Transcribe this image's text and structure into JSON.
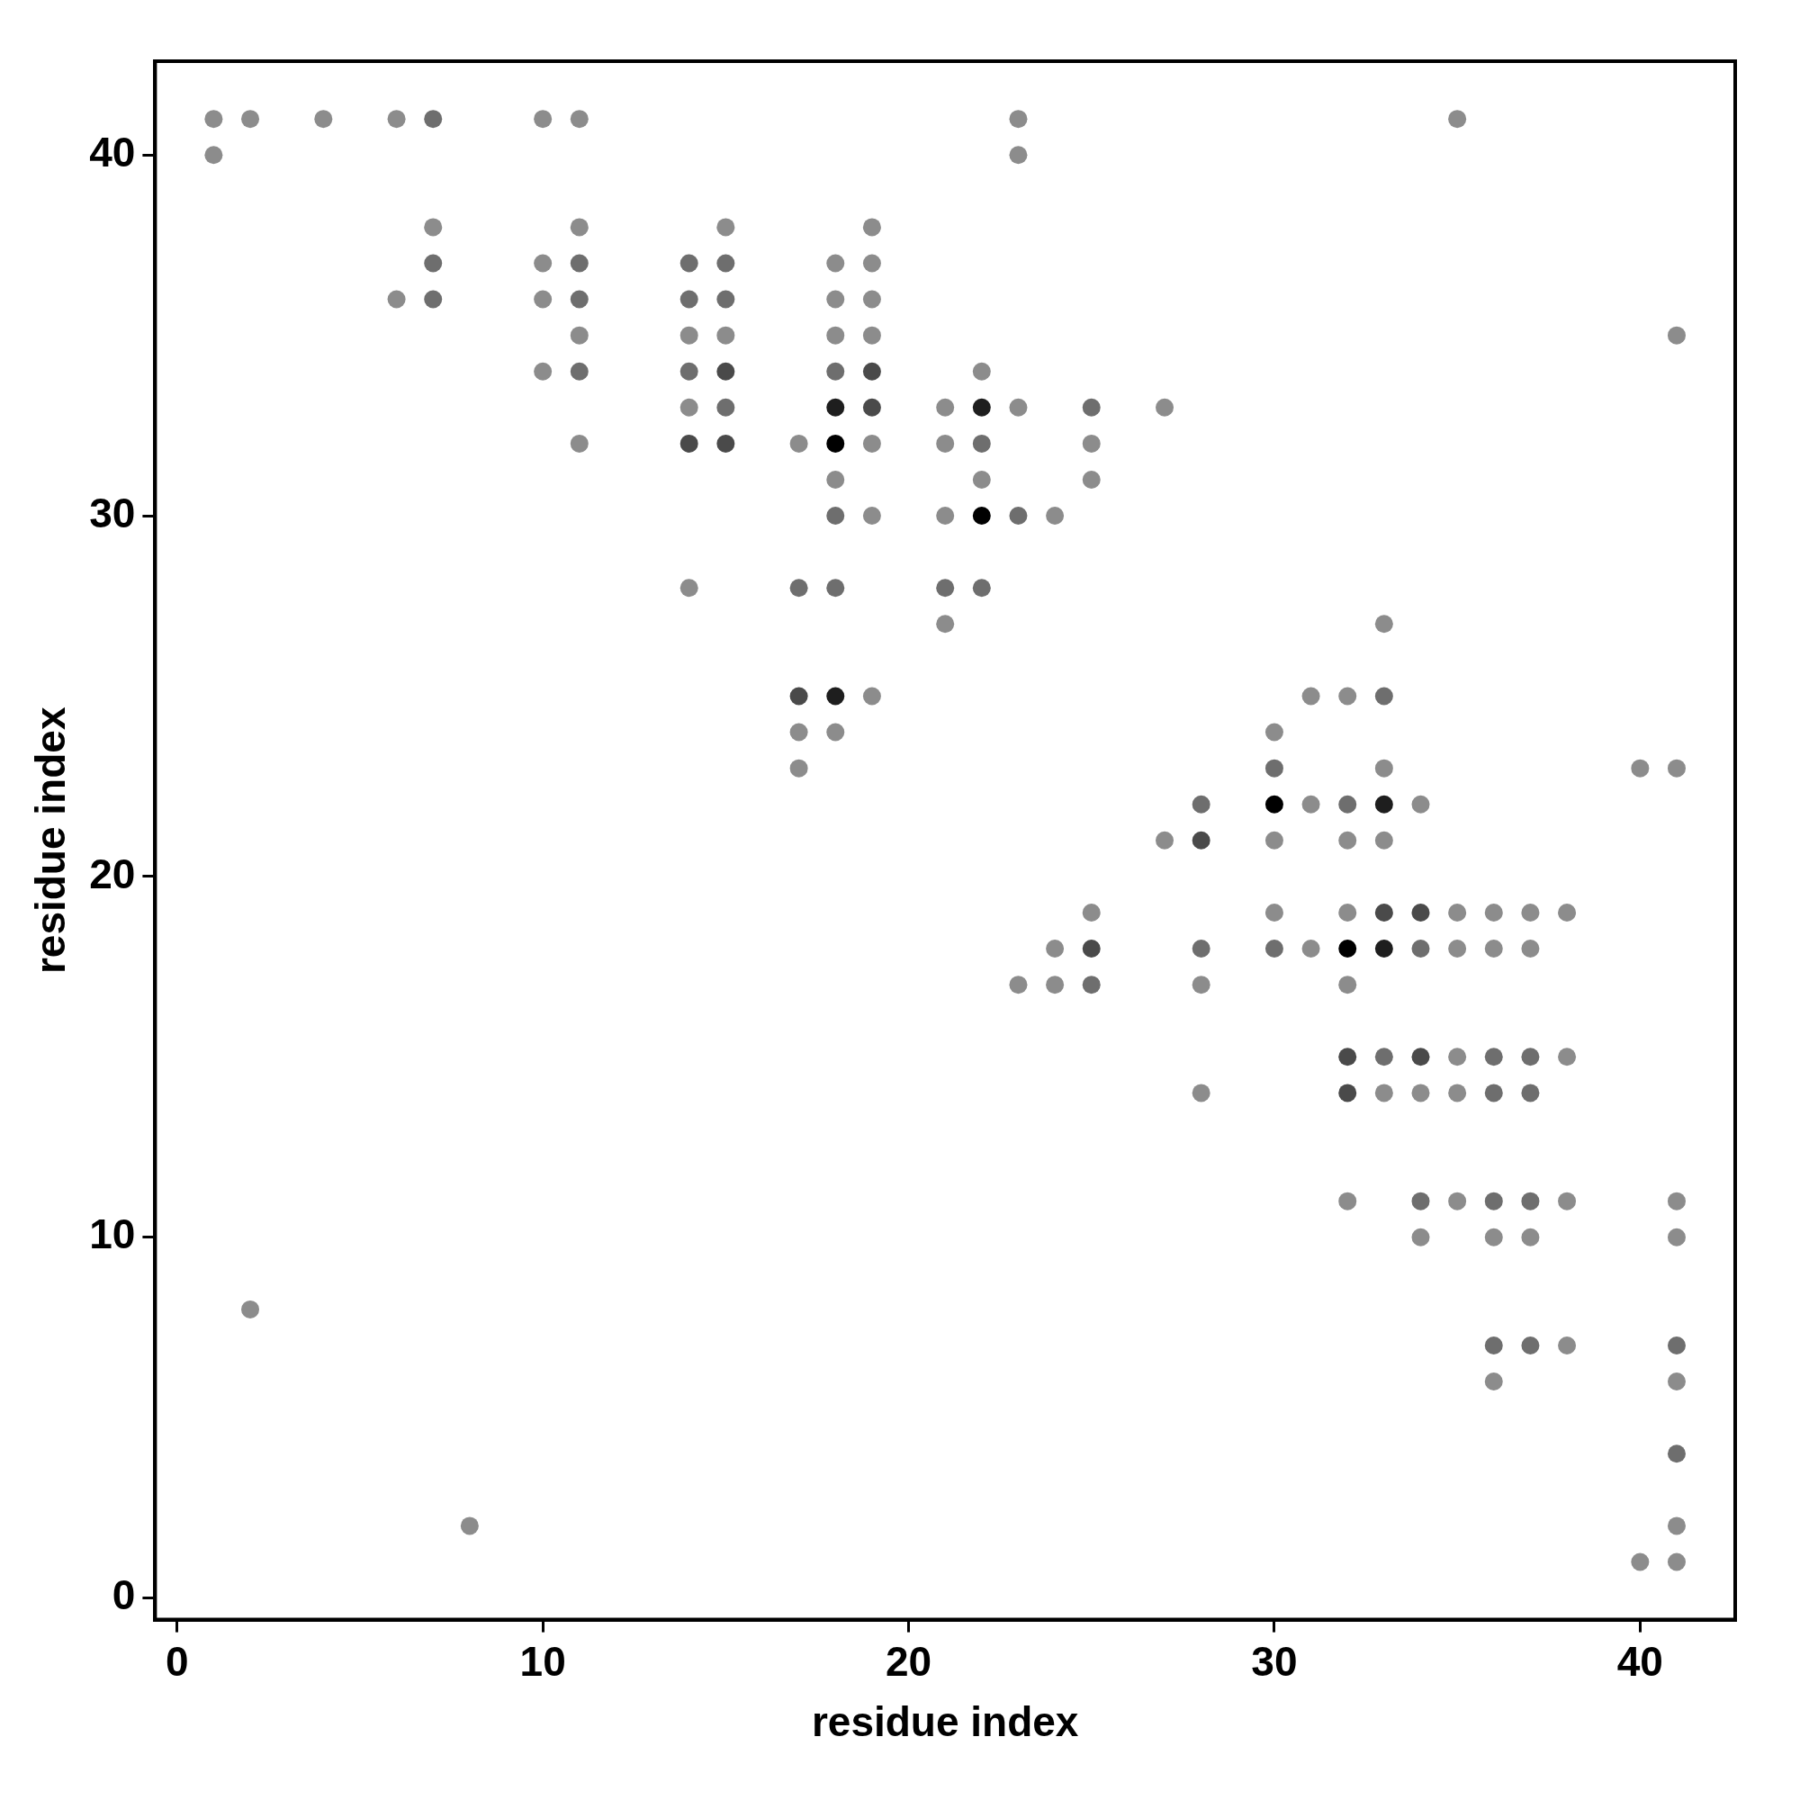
{
  "chart_data": {
    "type": "scatter",
    "xlabel": "residue index",
    "ylabel": "residue index",
    "marker": "circle",
    "grid": false,
    "legend": false,
    "xlim": [
      -0.6,
      42.6
    ],
    "ylim": [
      -0.6,
      42.6
    ],
    "xticks": [
      0,
      10,
      20,
      30,
      40
    ],
    "yticks": [
      0,
      10,
      20,
      30,
      40
    ],
    "x": [
      1,
      1,
      2,
      2,
      4,
      6,
      6,
      7,
      7,
      7,
      7,
      8,
      10,
      10,
      10,
      10,
      11,
      11,
      11,
      11,
      11,
      11,
      11,
      14,
      14,
      14,
      14,
      14,
      14,
      14,
      15,
      15,
      15,
      15,
      15,
      15,
      15,
      17,
      17,
      17,
      17,
      17,
      18,
      18,
      18,
      18,
      18,
      18,
      18,
      18,
      18,
      18,
      18,
      19,
      19,
      19,
      19,
      19,
      19,
      19,
      19,
      19,
      21,
      21,
      21,
      21,
      21,
      22,
      22,
      22,
      22,
      22,
      22,
      23,
      23,
      23,
      23,
      23,
      24,
      24,
      24,
      25,
      25,
      25,
      25,
      25,
      25,
      27,
      27,
      28,
      28,
      28,
      28,
      28,
      30,
      30,
      30,
      30,
      30,
      30,
      31,
      31,
      31,
      32,
      32,
      32,
      32,
      32,
      32,
      32,
      32,
      32,
      33,
      33,
      33,
      33,
      33,
      33,
      33,
      33,
      33,
      34,
      34,
      34,
      34,
      34,
      34,
      34,
      35,
      35,
      35,
      35,
      35,
      35,
      36,
      36,
      36,
      36,
      36,
      36,
      36,
      36,
      37,
      37,
      37,
      37,
      37,
      37,
      37,
      38,
      38,
      38,
      38,
      40,
      40,
      41,
      41,
      41,
      41,
      41,
      41,
      41,
      41,
      41
    ],
    "values": [
      41,
      40,
      41,
      8,
      41,
      41,
      36,
      41,
      38,
      37,
      36,
      2,
      41,
      37,
      36,
      34,
      41,
      38,
      37,
      36,
      35,
      34,
      32,
      37,
      36,
      35,
      34,
      33,
      32,
      28,
      38,
      37,
      36,
      35,
      34,
      33,
      32,
      32,
      28,
      25,
      24,
      23,
      37,
      36,
      35,
      34,
      33,
      32,
      31,
      30,
      28,
      25,
      24,
      38,
      37,
      36,
      35,
      34,
      33,
      32,
      30,
      25,
      33,
      32,
      30,
      28,
      27,
      34,
      33,
      32,
      31,
      30,
      28,
      41,
      40,
      33,
      30,
      17,
      30,
      18,
      17,
      33,
      32,
      31,
      19,
      18,
      17,
      33,
      21,
      22,
      21,
      18,
      17,
      14,
      24,
      23,
      22,
      21,
      19,
      18,
      25,
      22,
      18,
      25,
      22,
      21,
      19,
      18,
      17,
      15,
      14,
      11,
      27,
      25,
      23,
      22,
      21,
      19,
      18,
      15,
      14,
      22,
      19,
      18,
      15,
      14,
      11,
      10,
      41,
      19,
      18,
      15,
      14,
      11,
      19,
      18,
      15,
      14,
      11,
      10,
      7,
      6,
      19,
      18,
      15,
      14,
      11,
      10,
      7,
      19,
      15,
      11,
      7,
      23,
      1,
      35,
      23,
      11,
      10,
      7,
      6,
      4,
      2,
      1
    ],
    "colors": [
      "#8c8c8c",
      "#8c8c8c",
      "#8c8c8c",
      "#8c8c8c",
      "#8c8c8c",
      "#8c8c8c",
      "#8c8c8c",
      "#6e6e6e",
      "#8c8c8c",
      "#6e6e6e",
      "#6e6e6e",
      "#8c8c8c",
      "#8c8c8c",
      "#8c8c8c",
      "#8c8c8c",
      "#8c8c8c",
      "#8c8c8c",
      "#8c8c8c",
      "#6e6e6e",
      "#6e6e6e",
      "#8c8c8c",
      "#6e6e6e",
      "#8c8c8c",
      "#6e6e6e",
      "#6e6e6e",
      "#8c8c8c",
      "#6e6e6e",
      "#8c8c8c",
      "#4a4a4a",
      "#8c8c8c",
      "#8c8c8c",
      "#6e6e6e",
      "#6e6e6e",
      "#8c8c8c",
      "#4a4a4a",
      "#6e6e6e",
      "#4a4a4a",
      "#8c8c8c",
      "#6e6e6e",
      "#4a4a4a",
      "#8c8c8c",
      "#8c8c8c",
      "#8c8c8c",
      "#8c8c8c",
      "#8c8c8c",
      "#6e6e6e",
      "#1e1e1e",
      "#000000",
      "#8c8c8c",
      "#6e6e6e",
      "#6e6e6e",
      "#1e1e1e",
      "#8c8c8c",
      "#8c8c8c",
      "#8c8c8c",
      "#8c8c8c",
      "#8c8c8c",
      "#4a4a4a",
      "#4a4a4a",
      "#8c8c8c",
      "#8c8c8c",
      "#8c8c8c",
      "#8c8c8c",
      "#8c8c8c",
      "#8c8c8c",
      "#6e6e6e",
      "#8c8c8c",
      "#8c8c8c",
      "#1e1e1e",
      "#6e6e6e",
      "#8c8c8c",
      "#000000",
      "#6e6e6e",
      "#8c8c8c",
      "#8c8c8c",
      "#8c8c8c",
      "#6e6e6e",
      "#8c8c8c",
      "#8c8c8c",
      "#8c8c8c",
      "#8c8c8c",
      "#6e6e6e",
      "#8c8c8c",
      "#8c8c8c",
      "#8c8c8c",
      "#4a4a4a",
      "#6e6e6e",
      "#8c8c8c",
      "#8c8c8c",
      "#6e6e6e",
      "#4a4a4a",
      "#6e6e6e",
      "#8c8c8c",
      "#8c8c8c",
      "#8c8c8c",
      "#6e6e6e",
      "#000000",
      "#8c8c8c",
      "#8c8c8c",
      "#6e6e6e",
      "#8c8c8c",
      "#8c8c8c",
      "#8c8c8c",
      "#8c8c8c",
      "#6e6e6e",
      "#8c8c8c",
      "#8c8c8c",
      "#000000",
      "#8c8c8c",
      "#4a4a4a",
      "#4a4a4a",
      "#8c8c8c",
      "#8c8c8c",
      "#6e6e6e",
      "#8c8c8c",
      "#1e1e1e",
      "#8c8c8c",
      "#4a4a4a",
      "#1e1e1e",
      "#6e6e6e",
      "#8c8c8c",
      "#8c8c8c",
      "#4a4a4a",
      "#6e6e6e",
      "#4a4a4a",
      "#8c8c8c",
      "#6e6e6e",
      "#8c8c8c",
      "#8c8c8c",
      "#8c8c8c",
      "#8c8c8c",
      "#8c8c8c",
      "#8c8c8c",
      "#8c8c8c",
      "#8c8c8c",
      "#8c8c8c",
      "#6e6e6e",
      "#6e6e6e",
      "#6e6e6e",
      "#8c8c8c",
      "#6e6e6e",
      "#8c8c8c",
      "#8c8c8c",
      "#8c8c8c",
      "#6e6e6e",
      "#6e6e6e",
      "#6e6e6e",
      "#8c8c8c",
      "#6e6e6e",
      "#8c8c8c",
      "#8c8c8c",
      "#8c8c8c",
      "#8c8c8c",
      "#8c8c8c",
      "#8c8c8c",
      "#8c8c8c",
      "#8c8c8c",
      "#8c8c8c",
      "#8c8c8c",
      "#6e6e6e",
      "#8c8c8c",
      "#6e6e6e",
      "#8c8c8c",
      "#8c8c8c"
    ]
  }
}
